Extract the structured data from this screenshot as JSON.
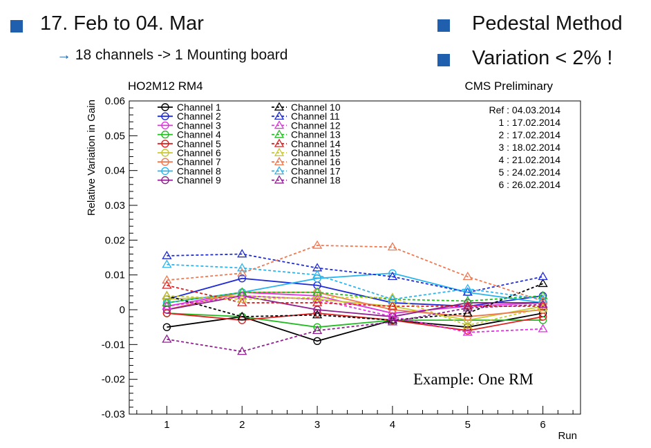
{
  "slide": {
    "left_bullet": "17. Feb to 04. Mar",
    "sub_bullet_arrow": "→",
    "sub_bullet": "18 channels -> 1 Mounting board",
    "right_bullets": [
      "Pedestal Method",
      "Variation < 2% !"
    ],
    "accent_color": "#1f5fae"
  },
  "chart_data": {
    "type": "line",
    "title_left": "HO2M12 RM4",
    "title_right": "CMS Preliminary",
    "xlabel": "Run",
    "ylabel": "Relative Variation in Gain",
    "xlim": [
      0.5,
      6.5
    ],
    "ylim": [
      -0.03,
      0.06
    ],
    "x": [
      1,
      2,
      3,
      4,
      5,
      6
    ],
    "x_ticks": [
      "1",
      "2",
      "3",
      "4",
      "5",
      "6"
    ],
    "y_ticks": [
      {
        "v": -0.03,
        "label": "-0.03"
      },
      {
        "v": -0.02,
        "label": "-0.02"
      },
      {
        "v": -0.01,
        "label": "-0.01"
      },
      {
        "v": 0,
        "label": "0"
      },
      {
        "v": 0.01,
        "label": "0.01"
      },
      {
        "v": 0.02,
        "label": "0.02"
      },
      {
        "v": 0.03,
        "label": "0.03"
      },
      {
        "v": 0.04,
        "label": "0.04"
      },
      {
        "v": 0.05,
        "label": "0.05"
      },
      {
        "v": 0.06,
        "label": "0.06"
      }
    ],
    "grid": false,
    "legend_position": "top-left",
    "reference_block": [
      "Ref : 04.03.2014",
      "1 : 17.02.2014",
      "2 : 17.02.2014",
      "3 : 18.02.2014",
      "4 : 21.02.2014",
      "5 : 24.02.2014",
      "6 : 26.02.2014"
    ],
    "annotation": "Example: One RM",
    "series": [
      {
        "name": "Channel 1",
        "color": "#000000",
        "marker": "circle",
        "dashed": false,
        "values": [
          -0.005,
          -0.002,
          -0.009,
          -0.003,
          -0.005,
          -0.001
        ]
      },
      {
        "name": "Channel 2",
        "color": "#1e2bd6",
        "marker": "circle",
        "dashed": false,
        "values": [
          0.003,
          0.009,
          0.007,
          0.002,
          0.001,
          0.004
        ]
      },
      {
        "name": "Channel 3",
        "color": "#e030e0",
        "marker": "circle",
        "dashed": false,
        "values": [
          0.001,
          0.005,
          0.004,
          -0.001,
          0.001,
          0.002
        ]
      },
      {
        "name": "Channel 4",
        "color": "#22bb22",
        "marker": "circle",
        "dashed": false,
        "values": [
          -0.001,
          -0.002,
          -0.005,
          -0.003,
          -0.003,
          -0.003
        ]
      },
      {
        "name": "Channel 5",
        "color": "#e01e1e",
        "marker": "circle",
        "dashed": false,
        "values": [
          -0.001,
          -0.003,
          -0.001,
          -0.003,
          -0.006,
          -0.002
        ]
      },
      {
        "name": "Channel 6",
        "color": "#c8c832",
        "marker": "circle",
        "dashed": false,
        "values": [
          0.003,
          0.004,
          0.003,
          0.001,
          -0.003,
          0.001
        ]
      },
      {
        "name": "Channel 7",
        "color": "#f07850",
        "marker": "circle",
        "dashed": false,
        "values": [
          0.0,
          0.005,
          0.005,
          0.0,
          -0.002,
          0.0
        ]
      },
      {
        "name": "Channel 8",
        "color": "#2ab4ee",
        "marker": "circle",
        "dashed": false,
        "values": [
          0.002,
          0.005,
          0.009,
          0.0105,
          0.005,
          0.002
        ]
      },
      {
        "name": "Channel 9",
        "color": "#8e1e8e",
        "marker": "circle",
        "dashed": false,
        "values": [
          0.0,
          0.004,
          0.0,
          -0.002,
          0.002,
          0.002
        ]
      },
      {
        "name": "Channel 10",
        "color": "#000000",
        "marker": "triangle",
        "dashed": true,
        "values": [
          0.004,
          -0.002,
          -0.0015,
          -0.003,
          -0.001,
          0.0075
        ]
      },
      {
        "name": "Channel 11",
        "color": "#1e2bd6",
        "marker": "triangle",
        "dashed": true,
        "values": [
          0.0155,
          0.016,
          0.012,
          0.0095,
          0.005,
          0.0095
        ]
      },
      {
        "name": "Channel 12",
        "color": "#e030e0",
        "marker": "triangle",
        "dashed": true,
        "values": [
          0.001,
          0.004,
          0.003,
          -0.002,
          -0.0065,
          -0.0055
        ]
      },
      {
        "name": "Channel 13",
        "color": "#22bb22",
        "marker": "triangle",
        "dashed": true,
        "values": [
          0.002,
          0.005,
          0.005,
          0.003,
          0.0025,
          0.004
        ]
      },
      {
        "name": "Channel 14",
        "color": "#e01e1e",
        "marker": "triangle",
        "dashed": true,
        "values": [
          0.007,
          0.002,
          0.002,
          0.001,
          0.001,
          0.001
        ]
      },
      {
        "name": "Channel 15",
        "color": "#c8c832",
        "marker": "triangle",
        "dashed": true,
        "values": [
          0.004,
          0.003,
          0.0035,
          0.0035,
          -0.0045,
          0.0005
        ]
      },
      {
        "name": "Channel 16",
        "color": "#f07850",
        "marker": "triangle",
        "dashed": true,
        "values": [
          0.0085,
          0.0105,
          0.0185,
          0.018,
          0.0095,
          0.0025
        ]
      },
      {
        "name": "Channel 17",
        "color": "#2ab4ee",
        "marker": "triangle",
        "dashed": true,
        "values": [
          0.013,
          0.012,
          0.01,
          0.003,
          0.006,
          0.003
        ]
      },
      {
        "name": "Channel 18",
        "color": "#8e1e8e",
        "marker": "triangle",
        "dashed": true,
        "values": [
          -0.0085,
          -0.012,
          -0.006,
          -0.0035,
          0.0005,
          0.0015
        ]
      }
    ]
  }
}
